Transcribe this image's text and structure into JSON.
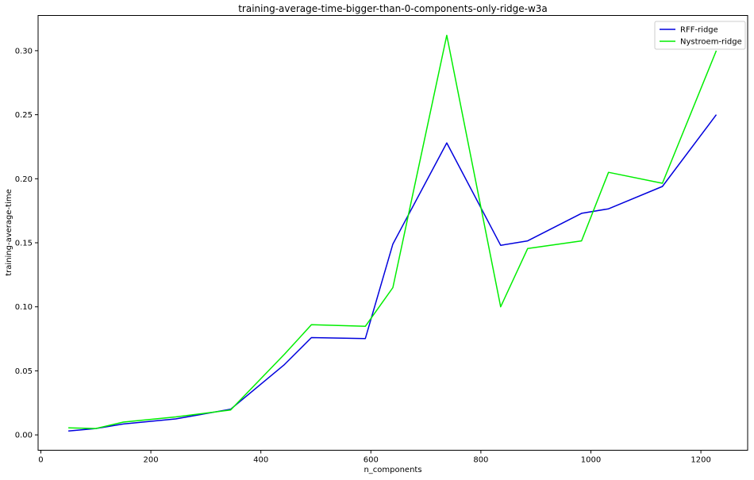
{
  "chart_data": {
    "type": "line",
    "title": "training-average-time-bigger-than-0-components-only-ridge-w3a",
    "xlabel": "n_components",
    "ylabel": "training-average-time",
    "xlim": [
      -5,
      1285
    ],
    "ylim": [
      -0.012,
      0.3275
    ],
    "xticks": [
      0,
      200,
      400,
      600,
      800,
      1000,
      1200
    ],
    "yticks": [
      0.0,
      0.05,
      0.1,
      0.15,
      0.2,
      0.25,
      0.3
    ],
    "ytick_labels": [
      "0.00",
      "0.05",
      "0.10",
      "0.15",
      "0.20",
      "0.25",
      "0.30"
    ],
    "grid": false,
    "legend_position": "top-right",
    "series": [
      {
        "name": "RFF-ridge",
        "color": "#0000dd",
        "x": [
          50,
          100,
          150,
          245,
          345,
          443,
          492,
          590,
          640,
          738,
          836,
          885,
          983,
          1032,
          1130,
          1228
        ],
        "y": [
          0.003,
          0.005,
          0.0085,
          0.0125,
          0.02,
          0.055,
          0.076,
          0.0752,
          0.149,
          0.228,
          0.148,
          0.1515,
          0.173,
          0.1765,
          0.194,
          0.25
        ]
      },
      {
        "name": "Nystroem-ridge",
        "color": "#00ee00",
        "x": [
          50,
          100,
          150,
          245,
          345,
          443,
          492,
          590,
          640,
          738,
          836,
          885,
          983,
          1032,
          1130,
          1228
        ],
        "y": [
          0.0055,
          0.005,
          0.01,
          0.014,
          0.0195,
          0.063,
          0.086,
          0.0848,
          0.115,
          0.312,
          0.1,
          0.1455,
          0.1515,
          0.205,
          0.1965,
          0.3
        ]
      }
    ]
  }
}
